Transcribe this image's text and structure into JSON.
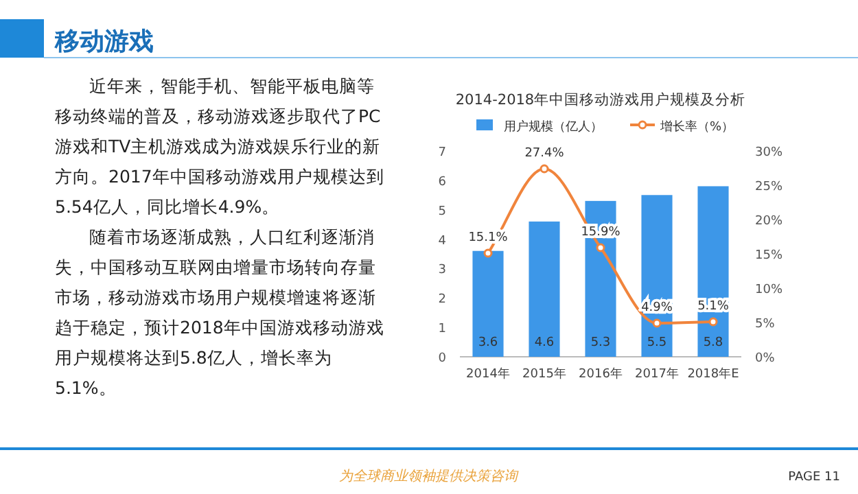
{
  "chart_data": {
    "type": "bar",
    "title": "2014-2018年中国移动游戏用户规模及分析",
    "categories": [
      "2014年",
      "2015年",
      "2016年",
      "2017年",
      "2018年E"
    ],
    "series": [
      {
        "name": "用户规模（亿人）",
        "color": "#3d97e8",
        "values": [
          3.6,
          4.6,
          5.3,
          5.5,
          5.8
        ]
      },
      {
        "name": "增长率（%）",
        "type": "line",
        "axis": "y2",
        "color": "#f0843c",
        "marker": "circle",
        "values": [
          15.1,
          27.4,
          15.9,
          4.9,
          5.1
        ],
        "value_labels": [
          "15.1%",
          "27.4%",
          "15.9%",
          "4.9%",
          "5.1%"
        ]
      }
    ],
    "ylim": [
      0,
      7
    ],
    "yticks": [
      0,
      1,
      2,
      3,
      4,
      5,
      6,
      7
    ],
    "y2lim": [
      0,
      30
    ],
    "y2ticks": [
      {
        "value": 0,
        "label": "0%"
      },
      {
        "value": 5,
        "label": "5%"
      },
      {
        "value": 10,
        "label": "10%"
      },
      {
        "value": 15,
        "label": "15%"
      },
      {
        "value": 20,
        "label": "20%"
      },
      {
        "value": 25,
        "label": "25%"
      },
      {
        "value": 30,
        "label": "30%"
      }
    ],
    "legend": "top",
    "data_labels": true,
    "annotations": [
      "移动游戏",
      "近年来，智能手机、智能平板电脑等移动终端的普及，移动游戏逐步取代了PC游戏和TV主机游戏成为游戏娱乐行业的新方向。2017年中国移动游戏用户规模达到5.54亿人，同比增长4.9%。",
      "随着市场逐渐成熟，人口红利逐渐消失，中国移动互联网由增量市场转向存量市场，移动游戏市场用户规模增速将逐渐趋于稳定，预计2018年中国游戏移动游戏用户规模将达到5.8亿人，增长率为5.1%。",
      "为全球商业领袖提供决策咨询",
      "PAGE 11"
    ]
  }
}
